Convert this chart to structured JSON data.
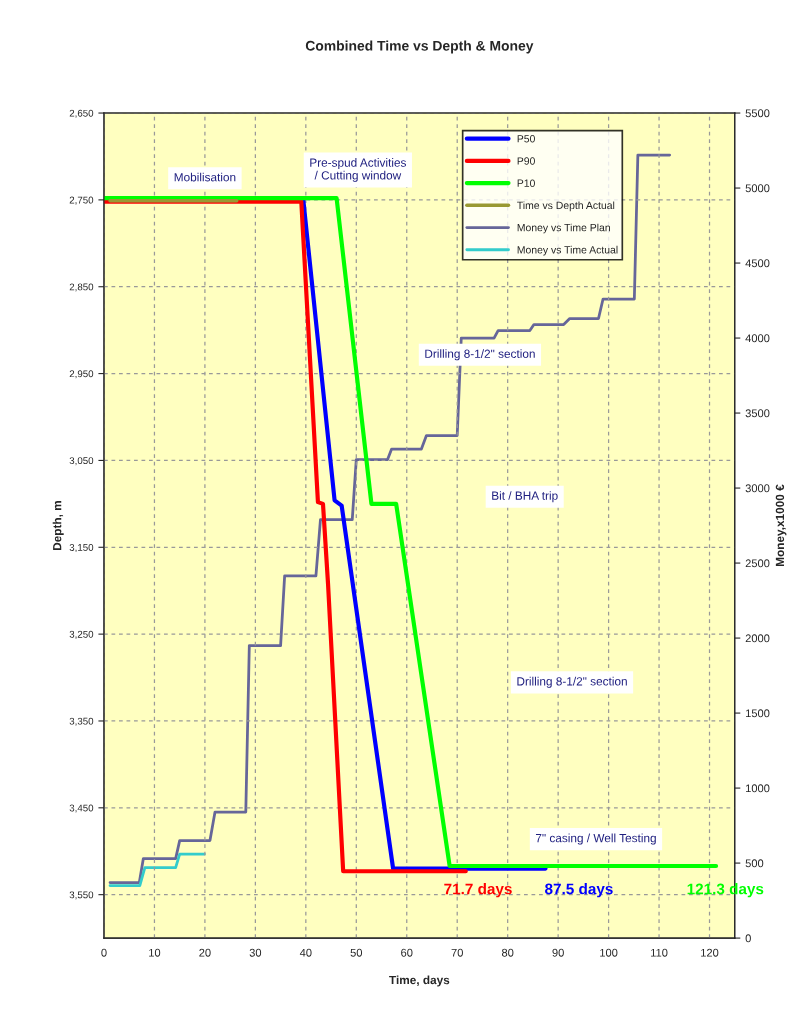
{
  "chart_data": {
    "type": "line",
    "title": "Combined Time vs Depth & Money",
    "xlabel": "Time, days",
    "ylabel": "Depth, m",
    "y2label": "Money,x1000 €",
    "xlim": [
      0,
      125
    ],
    "xticks": [
      0,
      10,
      20,
      30,
      40,
      50,
      60,
      70,
      80,
      90,
      100,
      110,
      120
    ],
    "ylim": [
      3600,
      2650
    ],
    "yticks": [
      {
        "value": 2650,
        "label": "2,650"
      },
      {
        "value": 2750,
        "label": "2,750"
      },
      {
        "value": 2850,
        "label": "2,850"
      },
      {
        "value": 2950,
        "label": "2,950"
      },
      {
        "value": 3050,
        "label": "3,050"
      },
      {
        "value": 3150,
        "label": "3,150"
      },
      {
        "value": 3250,
        "label": "3,250"
      },
      {
        "value": 3350,
        "label": "3,350"
      },
      {
        "value": 3450,
        "label": "3,450"
      },
      {
        "value": 3550,
        "label": "3,550"
      }
    ],
    "y2lim": [
      0,
      5500
    ],
    "y2ticks": [
      0,
      500,
      1000,
      1500,
      2000,
      2500,
      3000,
      3500,
      4000,
      4500,
      5000,
      5500
    ],
    "grid": true,
    "legend": "top right",
    "line_style": "solid",
    "marker": "none",
    "series": [
      {
        "name": "P50",
        "color": "#0000ff",
        "x": [
          0,
          39.5,
          45.7,
          47.1,
          57.3,
          87.5
        ],
        "values": [
          2750,
          2750,
          3096,
          3102,
          3520,
          3520
        ]
      },
      {
        "name": "P90",
        "color": "#ff0000",
        "x": [
          0,
          39.1,
          42.4,
          43.4,
          44.4,
          47.4,
          71.7
        ],
        "values": [
          2752,
          2752,
          3098,
          3100,
          3192,
          3523,
          3523
        ]
      },
      {
        "name": "P10",
        "color": "#00ff00",
        "x": [
          0,
          46.1,
          53.0,
          57.9,
          68.5,
          121.3
        ],
        "values": [
          2748,
          2748,
          3100,
          3100,
          3517,
          3517
        ]
      },
      {
        "name": "Time vs Depth Actual",
        "color": "#999933",
        "x": [
          1.2,
          26.3
        ],
        "values": [
          2751,
          2751
        ]
      },
      {
        "name": "Money vs Time Plan",
        "color": "#666699",
        "axis": "y2",
        "x": [
          1.2,
          7.0,
          7.8,
          14.2,
          15.0,
          21.0,
          22.0,
          28.1,
          28.8,
          35.0,
          35.8,
          42.0,
          42.9,
          49.2,
          50.0,
          56.2,
          57.0,
          62.9,
          63.9,
          70.0,
          70.8,
          77.3,
          78.1,
          84.4,
          85.2,
          91.1,
          92.3,
          98.0,
          98.9,
          105.1,
          105.8,
          112.1
        ],
        "values": [
          370,
          370,
          530,
          530,
          650,
          650,
          840,
          840,
          1950,
          1950,
          2415,
          2415,
          2790,
          2790,
          3190,
          3190,
          3260,
          3260,
          3350,
          3350,
          4000,
          4000,
          4050,
          4050,
          4090,
          4090,
          4130,
          4130,
          4260,
          4260,
          5220,
          5220
        ]
      },
      {
        "name": "Money vs Time Actual",
        "color": "#33cccc",
        "axis": "y2",
        "x": [
          1.2,
          7.1,
          8.1,
          14.2,
          15.0,
          19.9
        ],
        "values": [
          350,
          350,
          470,
          470,
          560,
          560
        ]
      }
    ],
    "annotations": [
      "Mobilisation",
      "Pre-spud Activities\n/ Cutting window",
      "Drilling 8-1/2\" section",
      "Bit / BHA trip",
      "Drilling 8-1/2\" section",
      "7\" casing / Well Testing",
      "71.7 days",
      "87.5 days",
      "121.3 days"
    ]
  }
}
